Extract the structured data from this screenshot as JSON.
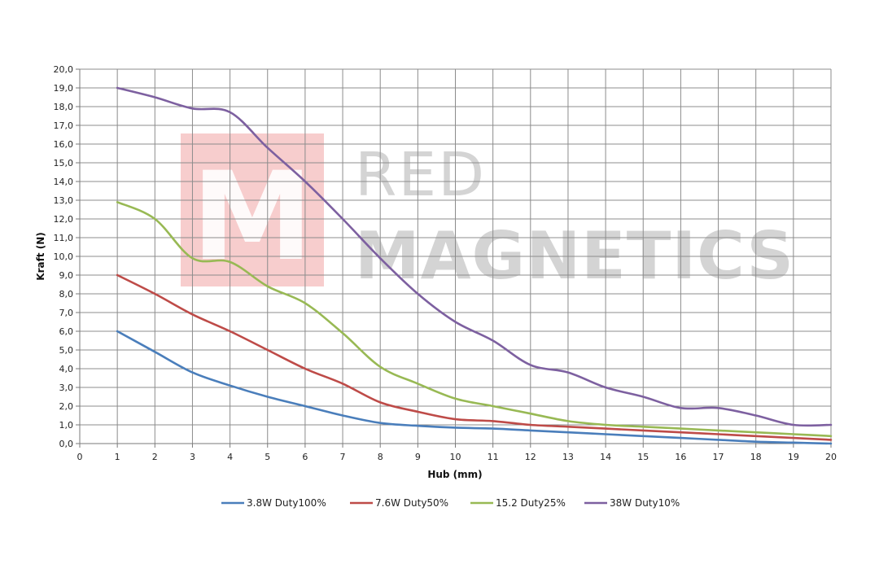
{
  "watermark": {
    "line1": "RED",
    "line2": "MAGNETICS",
    "logo_letter": "M",
    "logo_color": "#f6c4c4"
  },
  "chart_data": {
    "type": "line",
    "xlabel": "Hub (mm)",
    "ylabel": "Kraft (N)",
    "xlim": [
      0,
      20
    ],
    "ylim": [
      0,
      20
    ],
    "x_ticks": [
      "0",
      "1",
      "2",
      "3",
      "4",
      "5",
      "6",
      "7",
      "8",
      "9",
      "10",
      "11",
      "12",
      "13",
      "14",
      "15",
      "16",
      "17",
      "18",
      "19",
      "20"
    ],
    "y_ticks": [
      "0,0",
      "1,0",
      "2,0",
      "3,0",
      "4,0",
      "5,0",
      "6,0",
      "7,0",
      "8,0",
      "9,0",
      "10,0",
      "11,0",
      "12,0",
      "13,0",
      "14,0",
      "15,0",
      "16,0",
      "17,0",
      "18,0",
      "19,0",
      "20,0"
    ],
    "grid": true,
    "legend_position": "bottom",
    "x": [
      1,
      2,
      3,
      4,
      5,
      6,
      7,
      8,
      9,
      10,
      11,
      12,
      13,
      14,
      15,
      16,
      17,
      18,
      19,
      20
    ],
    "series": [
      {
        "name": "3.8W Duty100%",
        "color": "#4a7ebb",
        "values": [
          6.0,
          4.9,
          3.8,
          3.1,
          2.5,
          2.0,
          1.5,
          1.1,
          0.95,
          0.85,
          0.8,
          0.7,
          0.6,
          0.5,
          0.4,
          0.3,
          0.2,
          0.1,
          0.05,
          0.0
        ]
      },
      {
        "name": "7.6W Duty50%",
        "color": "#be4b48",
        "values": [
          9.0,
          8.0,
          6.9,
          6.0,
          5.0,
          4.0,
          3.2,
          2.2,
          1.7,
          1.3,
          1.2,
          1.0,
          0.9,
          0.8,
          0.7,
          0.6,
          0.5,
          0.4,
          0.3,
          0.2
        ]
      },
      {
        "name": "15.2 Duty25%",
        "color": "#98b954",
        "values": [
          12.9,
          12.0,
          9.9,
          9.7,
          8.4,
          7.5,
          5.9,
          4.1,
          3.2,
          2.4,
          2.0,
          1.6,
          1.2,
          1.0,
          0.9,
          0.8,
          0.7,
          0.6,
          0.5,
          0.4
        ]
      },
      {
        "name": "38W Duty10%",
        "color": "#7d60a0",
        "values": [
          19.0,
          18.5,
          17.9,
          17.7,
          15.8,
          14.0,
          12.0,
          9.9,
          8.0,
          6.5,
          5.5,
          4.2,
          3.8,
          3.0,
          2.5,
          1.9,
          1.9,
          1.5,
          1.0,
          1.0
        ]
      }
    ]
  }
}
